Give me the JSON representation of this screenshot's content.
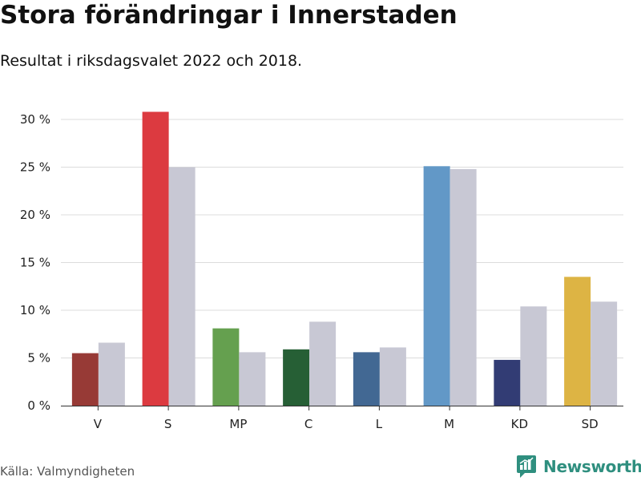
{
  "chart_data": {
    "type": "bar",
    "title": "Stora förändringar i Innerstaden",
    "subtitle": "Resultat i riksdagsvalet 2022 och 2018.",
    "categories": [
      "V",
      "S",
      "MP",
      "C",
      "L",
      "M",
      "KD",
      "SD"
    ],
    "series": [
      {
        "name": "2022",
        "values": [
          5.5,
          30.8,
          8.1,
          5.9,
          5.6,
          25.1,
          4.8,
          13.5
        ],
        "colors": [
          "#973a36",
          "#dc3a40",
          "#65a04f",
          "#265f35",
          "#426893",
          "#6298c7",
          "#323c74",
          "#ddb444"
        ]
      },
      {
        "name": "2018",
        "values": [
          6.6,
          25.0,
          5.6,
          8.8,
          6.1,
          24.8,
          10.4,
          10.9
        ],
        "color": "#c8c8d4"
      }
    ],
    "y_ticks": [
      0,
      5,
      10,
      15,
      20,
      25,
      30
    ],
    "y_tick_labels": [
      "0 %",
      "5 %",
      "10 %",
      "15 %",
      "20 %",
      "25 %",
      "30 %"
    ],
    "ylim": [
      0,
      30
    ],
    "grid": true,
    "xlabel": "",
    "ylabel": ""
  },
  "source": "Källa: Valmyndigheten",
  "brand": {
    "name": "Newsworthy",
    "color": "#2f8f7f",
    "icon": "bar-chart-icon"
  }
}
